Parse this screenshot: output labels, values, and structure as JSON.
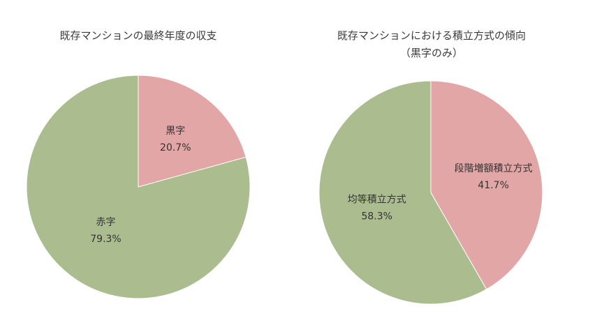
{
  "chart_data": [
    {
      "type": "pie",
      "title": "既存マンションの最終年度の収支",
      "categories": [
        "黒字",
        "赤字"
      ],
      "values": [
        20.7,
        79.3
      ],
      "data_labels": [
        "20.7%",
        "79.3%"
      ],
      "colors": [
        "#e3a6a6",
        "#abbd8e"
      ],
      "start": "12 o'clock",
      "direction": "clockwise"
    },
    {
      "type": "pie",
      "title": "既存マンションにおける積立方式の傾向",
      "subtitle": "（黒字のみ）",
      "categories": [
        "段階増額積立方式",
        "均等積立方式"
      ],
      "values": [
        41.7,
        58.3
      ],
      "data_labels": [
        "41.7%",
        "58.3%"
      ],
      "colors": [
        "#e3a6a6",
        "#abbd8e"
      ],
      "start": "12 o'clock",
      "direction": "clockwise"
    }
  ]
}
